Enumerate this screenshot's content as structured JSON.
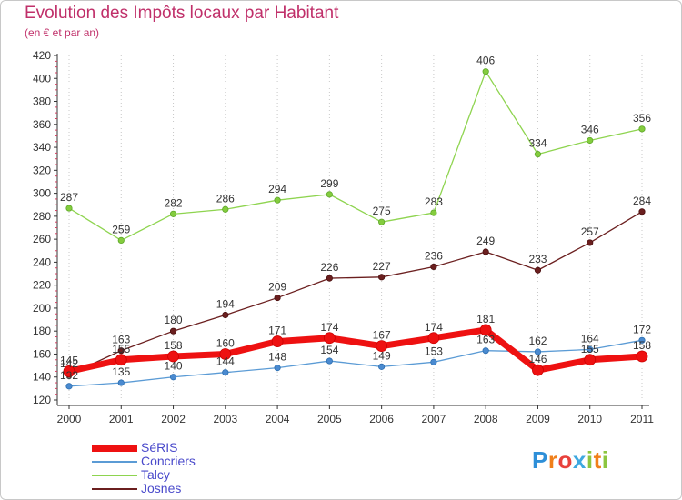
{
  "header": {
    "title": "Evolution des Impôts locaux par Habitant",
    "subtitle": "(en € et par an)"
  },
  "logo": {
    "text": "Proxiti"
  },
  "chart_data": {
    "type": "line",
    "title": "Evolution des Impôts locaux par Habitant",
    "subtitle": "(en € et par an)",
    "xlabel": "",
    "ylabel": "",
    "x": [
      "2000",
      "2001",
      "2002",
      "2003",
      "2004",
      "2005",
      "2006",
      "2007",
      "2008",
      "2009",
      "2010",
      "2011"
    ],
    "ylim": [
      120,
      420
    ],
    "yticks": [
      120,
      140,
      160,
      180,
      200,
      220,
      240,
      260,
      280,
      300,
      320,
      340,
      360,
      380,
      400,
      420
    ],
    "grid": "vertical dotted",
    "legend_position": "bottom-left",
    "series": [
      {
        "name": "SéRIS",
        "color": "#ee1111",
        "values": [
          145,
          155,
          158,
          160,
          171,
          174,
          167,
          174,
          181,
          146,
          155,
          158
        ],
        "labels": [
          145,
          155,
          158,
          160,
          171,
          174,
          167,
          174,
          181,
          146,
          155,
          158
        ]
      },
      {
        "name": "Concriers",
        "color": "#5b9bd5",
        "values": [
          132,
          135,
          140,
          144,
          148,
          154,
          149,
          153,
          163,
          162,
          164,
          172
        ],
        "labels": [
          132,
          135,
          140,
          144,
          148,
          154,
          149,
          153,
          163,
          162,
          164,
          172
        ]
      },
      {
        "name": "Talcy",
        "color": "#8ed44f",
        "values": [
          287,
          259,
          282,
          286,
          294,
          299,
          275,
          283,
          406,
          334,
          346,
          356
        ],
        "labels": [
          287,
          259,
          282,
          286,
          294,
          299,
          275,
          283,
          406,
          334,
          346,
          356
        ]
      },
      {
        "name": "Josnes",
        "color": "#6b1f1f",
        "values": [
          142,
          163,
          180,
          194,
          209,
          226,
          227,
          236,
          249,
          233,
          257,
          284
        ],
        "labels": [
          142,
          163,
          180,
          194,
          209,
          226,
          227,
          236,
          249,
          233,
          257,
          284
        ]
      }
    ]
  }
}
